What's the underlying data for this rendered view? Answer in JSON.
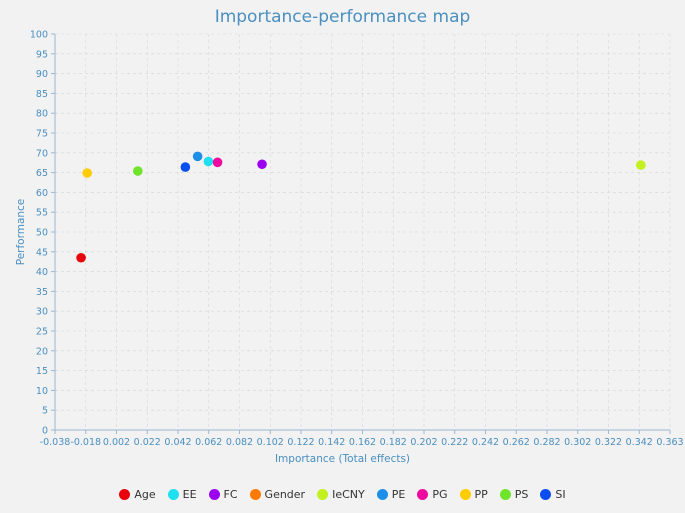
{
  "chart_data": {
    "type": "scatter",
    "title": "Importance-performance map",
    "xlabel": "Importance (Total effects)",
    "ylabel": "Performance",
    "xlim": [
      -0.038,
      0.363
    ],
    "ylim": [
      0,
      100
    ],
    "x_ticks": [
      "-0.038",
      "-0.018",
      "0.002",
      "0.022",
      "0.042",
      "0.062",
      "0.082",
      "0.102",
      "0.122",
      "0.142",
      "0.162",
      "0.182",
      "0.202",
      "0.222",
      "0.242",
      "0.262",
      "0.282",
      "0.302",
      "0.322",
      "0.342",
      "0.363"
    ],
    "y_ticks": [
      0,
      5,
      10,
      15,
      20,
      25,
      30,
      35,
      40,
      45,
      50,
      55,
      60,
      65,
      70,
      75,
      80,
      85,
      90,
      95,
      100
    ],
    "grid": true,
    "legend_position": "bottom",
    "series": [
      {
        "name": "Age",
        "color": "#e8000b",
        "x": -0.021,
        "y": 43.5
      },
      {
        "name": "EE",
        "color": "#1ee0f0",
        "x": 0.062,
        "y": 67.8
      },
      {
        "name": "FC",
        "color": "#9b00f0",
        "x": 0.097,
        "y": 67.1
      },
      {
        "name": "Gender",
        "color": "#ff7a00",
        "x": null,
        "y": null
      },
      {
        "name": "IeCNY",
        "color": "#c3f020",
        "x": 0.344,
        "y": 66.9
      },
      {
        "name": "PE",
        "color": "#1c8fe8",
        "x": 0.055,
        "y": 69.1
      },
      {
        "name": "PG",
        "color": "#ee0aa0",
        "x": 0.068,
        "y": 67.6
      },
      {
        "name": "PP",
        "color": "#ffcc00",
        "x": -0.017,
        "y": 64.9
      },
      {
        "name": "PS",
        "color": "#6ee42a",
        "x": 0.016,
        "y": 65.4
      },
      {
        "name": "SI",
        "color": "#0a4ef0",
        "x": 0.047,
        "y": 66.4
      }
    ]
  }
}
